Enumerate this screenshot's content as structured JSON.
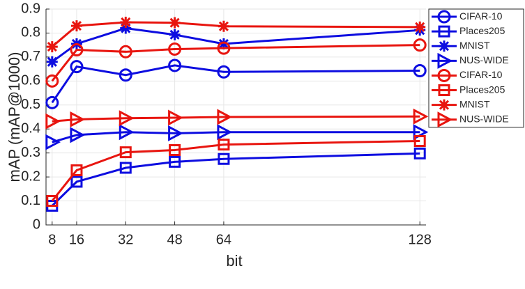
{
  "chart_data": {
    "type": "line",
    "x_label": "bit",
    "y_label": "mAP (mAP@1000)",
    "x": [
      8,
      16,
      32,
      48,
      64,
      128
    ],
    "xlim": [
      6,
      130
    ],
    "xticks": [
      8,
      16,
      32,
      48,
      64,
      128
    ],
    "ylim": [
      0,
      0.9
    ],
    "yticks": [
      0,
      0.1,
      0.2,
      0.3,
      0.4,
      0.5,
      0.6,
      0.7,
      0.8,
      0.9
    ],
    "grid": true,
    "legend": "outside-top-right",
    "series": [
      {
        "name": "CIFAR-10",
        "color": "#0d0de0",
        "marker": "circle",
        "values": [
          0.51,
          0.66,
          0.625,
          0.665,
          0.638,
          0.643
        ]
      },
      {
        "name": "Places205",
        "color": "#0d0de0",
        "marker": "square",
        "values": [
          0.08,
          0.18,
          0.238,
          0.263,
          0.275,
          0.298
        ]
      },
      {
        "name": "MNIST",
        "color": "#0d0de0",
        "marker": "star",
        "values": [
          0.68,
          0.755,
          0.82,
          0.793,
          0.755,
          0.812
        ]
      },
      {
        "name": "NUS-WIDE",
        "color": "#0d0de0",
        "marker": "triangle-right",
        "values": [
          0.345,
          0.375,
          0.387,
          0.382,
          0.387,
          0.387
        ]
      },
      {
        "name": "CIFAR-10",
        "color": "#e8150f",
        "marker": "circle",
        "values": [
          0.6,
          0.73,
          0.722,
          0.733,
          0.737,
          0.75
        ]
      },
      {
        "name": "Places205",
        "color": "#e8150f",
        "marker": "square",
        "values": [
          0.1,
          0.228,
          0.303,
          0.312,
          0.335,
          0.35
        ]
      },
      {
        "name": "MNIST",
        "color": "#e8150f",
        "marker": "star",
        "values": [
          0.743,
          0.83,
          0.845,
          0.843,
          0.828,
          0.825
        ]
      },
      {
        "name": "NUS-WIDE",
        "color": "#e8150f",
        "marker": "triangle-right",
        "values": [
          0.432,
          0.44,
          0.445,
          0.447,
          0.45,
          0.452
        ]
      }
    ]
  }
}
